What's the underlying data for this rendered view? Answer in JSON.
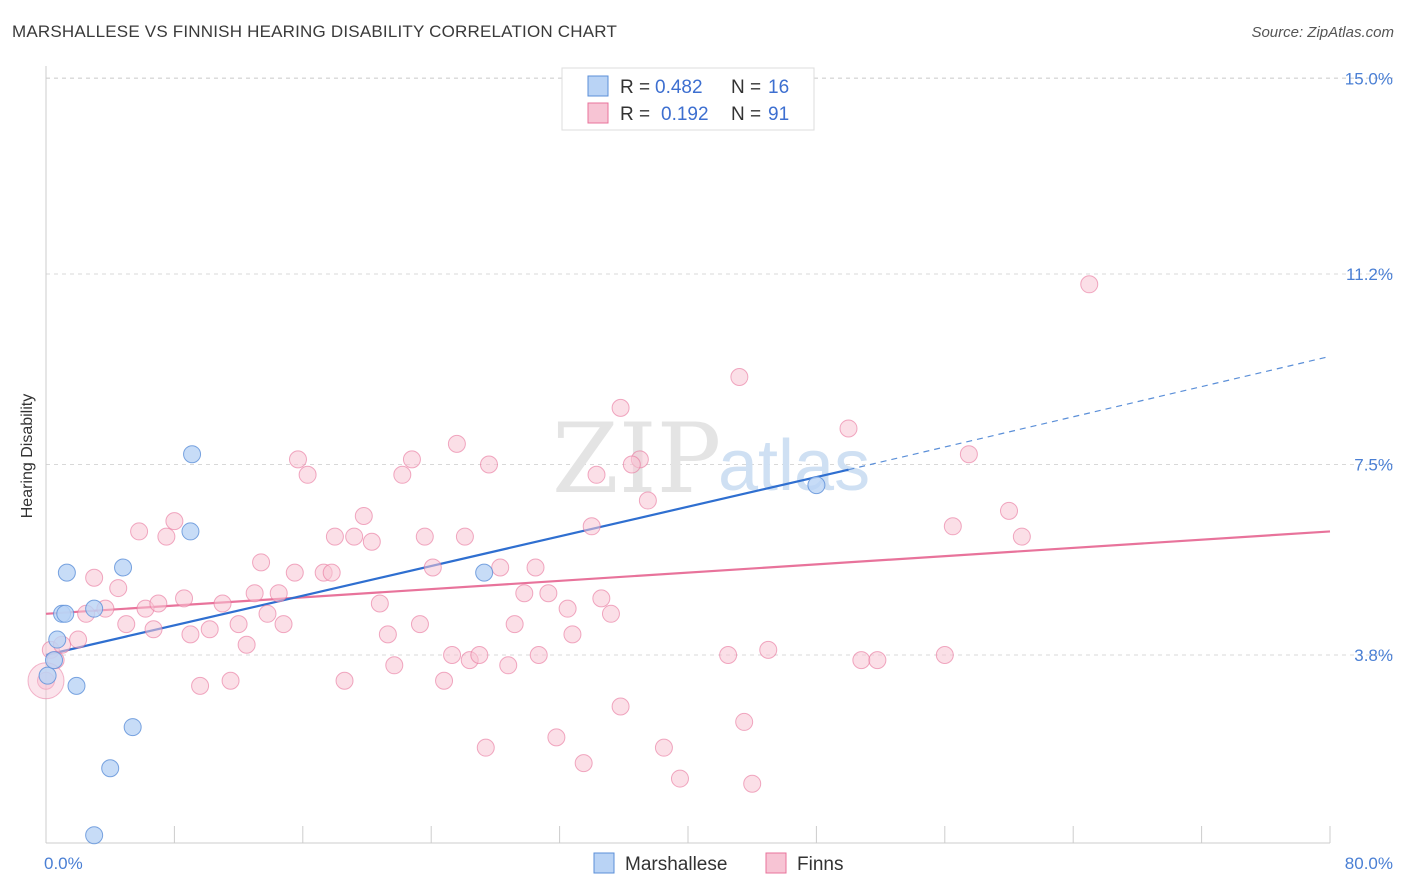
{
  "header": {
    "title": "MARSHALLESE VS FINNISH HEARING DISABILITY CORRELATION CHART",
    "source": "Source: ZipAtlas.com"
  },
  "watermark": {
    "zip": "ZIP",
    "atlas": "atlas"
  },
  "legend_top": {
    "r_label": "R =",
    "n_label": "N =",
    "rows": [
      {
        "r": "0.482",
        "n": "16"
      },
      {
        "r": "0.192",
        "n": "91"
      }
    ]
  },
  "legend_bottom": [
    "Marshallese",
    "Finns"
  ],
  "chart_data": {
    "type": "scatter",
    "title": "MARSHALLESE VS FINNISH HEARING DISABILITY CORRELATION CHART",
    "ylabel": "Hearing Disability",
    "xlabel": "",
    "xlim": [
      0,
      80
    ],
    "ylim": [
      0,
      15.5
    ],
    "x_tick_labels": [
      "0.0%",
      "80.0%"
    ],
    "y_ticks": [
      3.8,
      7.5,
      11.2,
      15.0
    ],
    "y_tick_labels": [
      "3.8%",
      "7.5%",
      "11.2%",
      "15.0%"
    ],
    "grid": "horizontal dashed",
    "colors": {
      "marshallese": "#5b8fd8",
      "marshallese_fill": "#b9d3f5",
      "finns": "#e8739b",
      "finns_fill": "#f7c4d4"
    },
    "series": [
      {
        "name": "Marshallese",
        "r": 0.482,
        "n": 16,
        "points": [
          [
            0.1,
            3.4
          ],
          [
            0.5,
            3.7
          ],
          [
            0.7,
            4.1
          ],
          [
            1.0,
            4.6
          ],
          [
            1.2,
            4.6
          ],
          [
            1.3,
            5.4
          ],
          [
            1.9,
            3.2
          ],
          [
            3.0,
            4.7
          ],
          [
            4.0,
            1.6
          ],
          [
            4.8,
            5.5
          ],
          [
            5.4,
            2.4
          ],
          [
            9.1,
            7.7
          ],
          [
            9.0,
            6.2
          ],
          [
            27.3,
            5.4
          ],
          [
            48.0,
            7.1
          ],
          [
            3.0,
            0.3
          ]
        ],
        "trend": {
          "x0": 0,
          "y0": 3.8,
          "x1": 50,
          "y1": 7.4,
          "dashed_to_x": 80,
          "dashed_to_y": 9.6
        }
      },
      {
        "name": "Finns",
        "r": 0.192,
        "n": 91,
        "points": [
          [
            0.0,
            3.3
          ],
          [
            0.3,
            3.9
          ],
          [
            0.6,
            3.7
          ],
          [
            1.0,
            4.0
          ],
          [
            2.0,
            4.1
          ],
          [
            2.5,
            4.6
          ],
          [
            3.0,
            5.3
          ],
          [
            3.7,
            4.7
          ],
          [
            4.5,
            5.1
          ],
          [
            5.0,
            4.4
          ],
          [
            5.8,
            6.2
          ],
          [
            6.2,
            4.7
          ],
          [
            6.7,
            4.3
          ],
          [
            7.0,
            4.8
          ],
          [
            7.5,
            6.1
          ],
          [
            8.0,
            6.4
          ],
          [
            8.6,
            4.9
          ],
          [
            9.0,
            4.2
          ],
          [
            9.6,
            3.2
          ],
          [
            10.2,
            4.3
          ],
          [
            11.0,
            4.8
          ],
          [
            11.5,
            3.3
          ],
          [
            12.0,
            4.4
          ],
          [
            12.5,
            4.0
          ],
          [
            13.0,
            5.0
          ],
          [
            13.4,
            5.6
          ],
          [
            13.8,
            4.6
          ],
          [
            14.5,
            5.0
          ],
          [
            14.8,
            4.4
          ],
          [
            15.5,
            5.4
          ],
          [
            15.7,
            7.6
          ],
          [
            16.3,
            7.3
          ],
          [
            17.3,
            5.4
          ],
          [
            17.8,
            5.4
          ],
          [
            18.0,
            6.1
          ],
          [
            18.6,
            3.3
          ],
          [
            19.2,
            6.1
          ],
          [
            19.8,
            6.5
          ],
          [
            20.3,
            6.0
          ],
          [
            20.8,
            4.8
          ],
          [
            21.3,
            4.2
          ],
          [
            21.7,
            3.6
          ],
          [
            22.2,
            7.3
          ],
          [
            22.8,
            7.6
          ],
          [
            23.3,
            4.4
          ],
          [
            23.6,
            6.1
          ],
          [
            24.1,
            5.5
          ],
          [
            24.8,
            3.3
          ],
          [
            25.3,
            3.8
          ],
          [
            25.6,
            7.9
          ],
          [
            26.1,
            6.1
          ],
          [
            26.4,
            3.7
          ],
          [
            27.0,
            3.8
          ],
          [
            27.6,
            7.5
          ],
          [
            28.3,
            5.5
          ],
          [
            28.8,
            3.6
          ],
          [
            29.2,
            4.4
          ],
          [
            29.8,
            5.0
          ],
          [
            30.5,
            5.5
          ],
          [
            31.3,
            5.0
          ],
          [
            31.8,
            2.2
          ],
          [
            32.5,
            4.7
          ],
          [
            32.8,
            4.2
          ],
          [
            33.5,
            1.7
          ],
          [
            34.0,
            6.3
          ],
          [
            34.3,
            7.3
          ],
          [
            34.6,
            4.9
          ],
          [
            35.8,
            2.8
          ],
          [
            35.8,
            8.6
          ],
          [
            37.0,
            7.6
          ],
          [
            37.5,
            6.8
          ],
          [
            27.4,
            2.0
          ],
          [
            36.5,
            7.5
          ],
          [
            38.5,
            2.0
          ],
          [
            39.5,
            1.4
          ],
          [
            42.5,
            3.8
          ],
          [
            43.2,
            9.2
          ],
          [
            43.5,
            2.5
          ],
          [
            44.0,
            1.3
          ],
          [
            45.0,
            3.9
          ],
          [
            50.0,
            8.2
          ],
          [
            50.8,
            3.7
          ],
          [
            51.8,
            3.7
          ],
          [
            56.0,
            3.8
          ],
          [
            56.5,
            6.3
          ],
          [
            57.5,
            7.7
          ],
          [
            60.0,
            6.6
          ],
          [
            60.8,
            6.1
          ],
          [
            65.0,
            11.0
          ],
          [
            35.2,
            4.6
          ],
          [
            30.7,
            3.8
          ]
        ],
        "trend": {
          "x0": 0,
          "y0": 4.6,
          "x1": 80,
          "y1": 6.2
        }
      }
    ]
  }
}
